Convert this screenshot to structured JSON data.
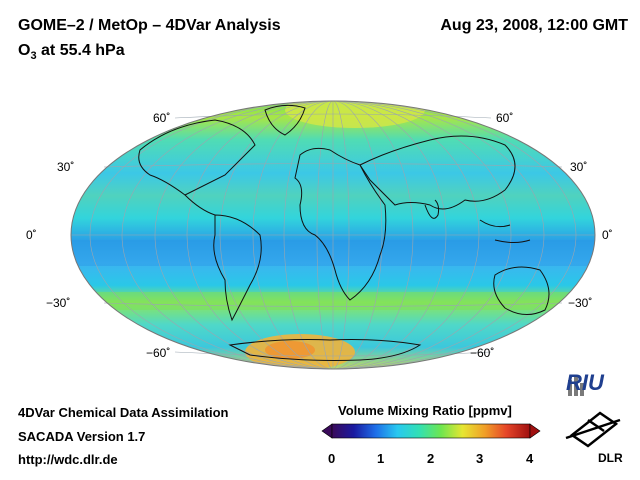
{
  "header": {
    "title": "GOME–2 / MetOp – 4DVar Analysis",
    "date": "Aug 23, 2008, 12:00 GMT",
    "subtitle_main": "O",
    "subtitle_sub": "3",
    "subtitle_rest": " at 55.4 hPa"
  },
  "map": {
    "projection": "Hammer-Aitoff",
    "lat_labels": {
      "n60": "60˚",
      "n30": "30˚",
      "eq": "0˚",
      "s30": "−30˚",
      "s60": "−60˚"
    }
  },
  "footer": {
    "line1": "4DVar Chemical Data Assimilation",
    "line2": "SACADA Version 1.7",
    "line3": "http://wdc.dlr.de"
  },
  "colorbar": {
    "title": "Volume Mixing Ratio [ppmv]",
    "ticks": [
      "0",
      "1",
      "2",
      "3",
      "4"
    ],
    "colors": [
      "#3a0a5a",
      "#1a1aa0",
      "#1e6ee8",
      "#28c8f0",
      "#32e0b4",
      "#6ee650",
      "#e6e632",
      "#f0a028",
      "#e64628",
      "#a01010"
    ]
  },
  "logos": {
    "riu": "RIU",
    "dlr": "DLR"
  }
}
